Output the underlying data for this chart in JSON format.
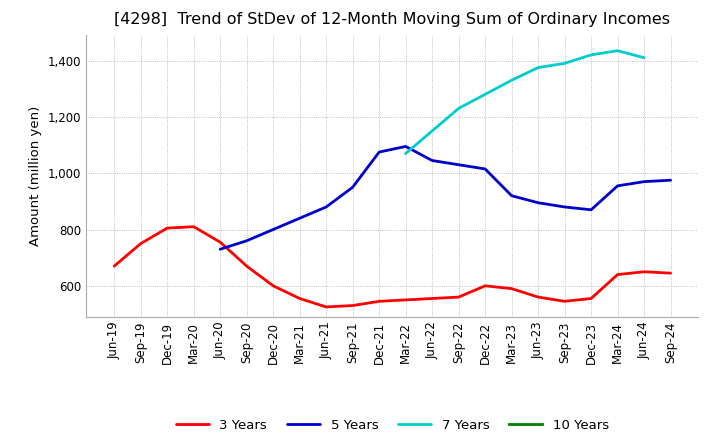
{
  "title": "[4298]  Trend of StDev of 12-Month Moving Sum of Ordinary Incomes",
  "ylabel": "Amount (million yen)",
  "title_fontsize": 11.5,
  "label_fontsize": 9.5,
  "tick_fontsize": 8.5,
  "ylim": [
    490,
    1490
  ],
  "yticks": [
    600,
    800,
    1000,
    1200,
    1400
  ],
  "background_color": "#ffffff",
  "grid_color": "#aaaaaa",
  "x_labels": [
    "Jun-19",
    "Sep-19",
    "Dec-19",
    "Mar-20",
    "Jun-20",
    "Sep-20",
    "Dec-20",
    "Mar-21",
    "Jun-21",
    "Sep-21",
    "Dec-21",
    "Mar-22",
    "Jun-22",
    "Sep-22",
    "Dec-22",
    "Mar-23",
    "Jun-23",
    "Sep-23",
    "Dec-23",
    "Mar-24",
    "Jun-24",
    "Sep-24"
  ],
  "series": {
    "3 Years": {
      "color": "#ff0000",
      "values": [
        670,
        750,
        805,
        810,
        755,
        670,
        600,
        555,
        525,
        530,
        545,
        550,
        555,
        560,
        600,
        590,
        560,
        545,
        555,
        640,
        650,
        645
      ]
    },
    "5 Years": {
      "color": "#0000cc",
      "values": [
        null,
        null,
        null,
        null,
        730,
        760,
        800,
        840,
        880,
        950,
        1075,
        1095,
        1045,
        1030,
        1015,
        920,
        895,
        880,
        870,
        955,
        970,
        975
      ]
    },
    "7 Years": {
      "color": "#00cccc",
      "values": [
        null,
        null,
        null,
        null,
        null,
        null,
        null,
        null,
        null,
        null,
        null,
        1070,
        1150,
        1230,
        1280,
        1330,
        1375,
        1390,
        1420,
        1435,
        1410,
        null
      ]
    },
    "10 Years": {
      "color": "#008000",
      "values": [
        null,
        null,
        null,
        null,
        null,
        null,
        null,
        null,
        null,
        null,
        null,
        null,
        null,
        null,
        null,
        null,
        null,
        null,
        null,
        null,
        null,
        null
      ]
    }
  }
}
